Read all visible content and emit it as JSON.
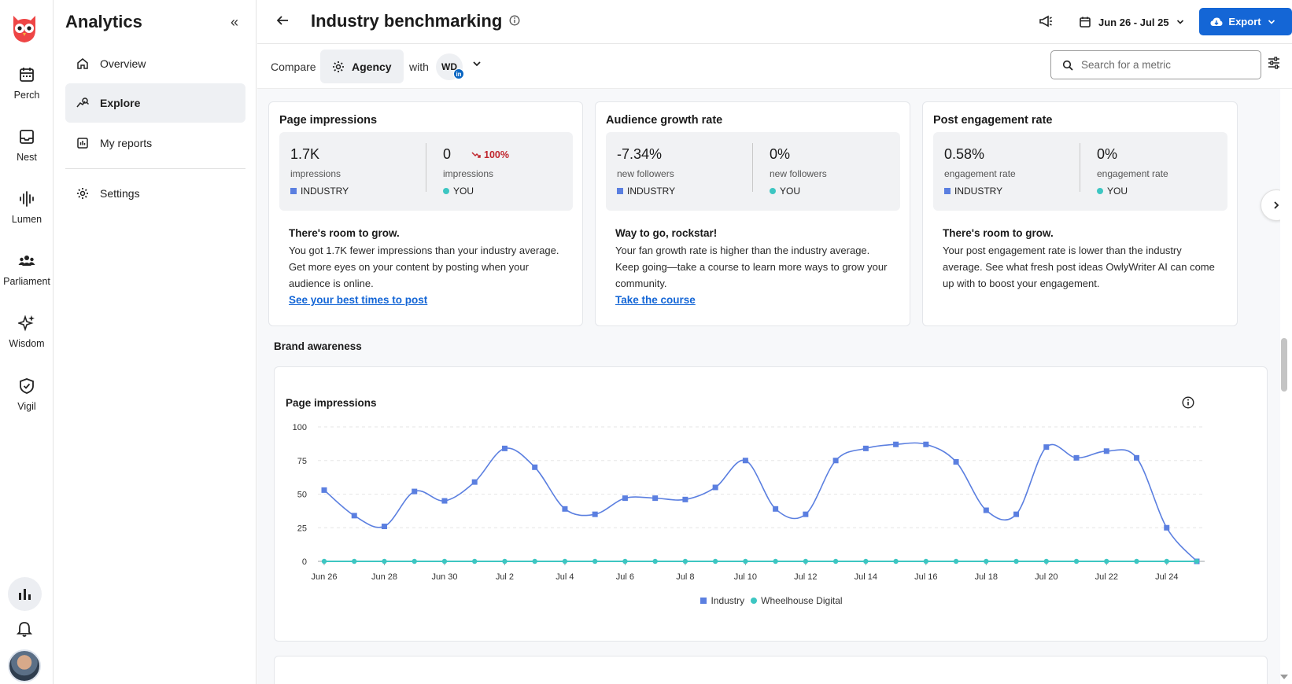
{
  "rail": {
    "items": [
      {
        "label": "Perch",
        "icon": "calendar-icon"
      },
      {
        "label": "Nest",
        "icon": "inbox-icon"
      },
      {
        "label": "Lumen",
        "icon": "waveform-icon"
      },
      {
        "label": "Parliament",
        "icon": "people-icon"
      },
      {
        "label": "Wisdom",
        "icon": "sparkle-icon"
      },
      {
        "label": "Vigil",
        "icon": "shield-icon"
      }
    ]
  },
  "subnav": {
    "title": "Analytics",
    "items": [
      {
        "label": "Overview",
        "icon": "home-icon"
      },
      {
        "label": "Explore",
        "icon": "explore-icon"
      },
      {
        "label": "My reports",
        "icon": "report-icon"
      },
      {
        "label": "Settings",
        "icon": "gear-icon"
      }
    ]
  },
  "header": {
    "title": "Industry benchmarking",
    "date_range": "Jun 26 - Jul 25",
    "export_label": "Export"
  },
  "compare": {
    "compare_label": "Compare",
    "agency_label": "Agency",
    "with_label": "with",
    "account_initials": "WD",
    "network_badge": "in",
    "search_placeholder": "Search for a metric"
  },
  "cards": [
    {
      "title": "Page impressions",
      "industry_value": "1.7K",
      "industry_unit": "impressions",
      "industry_legend": "INDUSTRY",
      "you_value": "0",
      "you_change": "100%",
      "you_unit": "impressions",
      "you_legend": "YOU",
      "headline": "There's room to grow.",
      "body": [
        "You got 1.7K fewer impressions than your industry average.",
        "Get more eyes on your content by posting when your",
        "audience is online."
      ],
      "link": "See your best times to post"
    },
    {
      "title": "Audience growth rate",
      "industry_value": "-7.34%",
      "industry_unit": "new followers",
      "industry_legend": "INDUSTRY",
      "you_value": "0%",
      "you_unit": "new followers",
      "you_legend": "YOU",
      "headline": "Way to go, rockstar!",
      "body": [
        "Your fan growth rate is higher than the industry average.",
        "Keep going—take a course to learn more ways to grow your",
        "community."
      ],
      "link": "Take the course"
    },
    {
      "title": "Post engagement rate",
      "industry_value": "0.58%",
      "industry_unit": "engagement rate",
      "industry_legend": "INDUSTRY",
      "you_value": "0%",
      "you_unit": "engagement rate",
      "you_legend": "YOU",
      "headline": "There's room to grow.",
      "body": [
        "Your post engagement rate is lower than the industry",
        "average. See what fresh post ideas OwlyWriter AI can come",
        "up with to boost your engagement."
      ]
    }
  ],
  "section": {
    "title": "Brand awareness"
  },
  "colors": {
    "industry": "#5b7fe0",
    "you": "#3dc6c2",
    "accent": "#1466d6",
    "negative": "#c0262d"
  },
  "chart_data": {
    "type": "line",
    "title": "Page impressions",
    "x": [
      "Jun 26",
      "Jun 27",
      "Jun 28",
      "Jun 29",
      "Jun 30",
      "Jul 1",
      "Jul 2",
      "Jul 3",
      "Jul 4",
      "Jul 5",
      "Jul 6",
      "Jul 7",
      "Jul 8",
      "Jul 9",
      "Jul 10",
      "Jul 11",
      "Jul 12",
      "Jul 13",
      "Jul 14",
      "Jul 15",
      "Jul 16",
      "Jul 17",
      "Jul 18",
      "Jul 19",
      "Jul 20",
      "Jul 21",
      "Jul 22",
      "Jul 23",
      "Jul 24",
      "Jul 25"
    ],
    "x_tick_labels": [
      "Jun 26",
      "Jun 28",
      "Jun 30",
      "Jul 2",
      "Jul 4",
      "Jul 6",
      "Jul 8",
      "Jul 10",
      "Jul 12",
      "Jul 14",
      "Jul 16",
      "Jul 18",
      "Jul 20",
      "Jul 22",
      "Jul 24"
    ],
    "y_ticks": [
      0,
      25,
      50,
      75,
      100
    ],
    "ylim": [
      0,
      100
    ],
    "grid": true,
    "legend": "bottom",
    "series": [
      {
        "name": "Industry",
        "color": "#5b7fe0",
        "marker": "square",
        "values": [
          53,
          34,
          26,
          52,
          45,
          59,
          84,
          70,
          39,
          35,
          47,
          47,
          46,
          55,
          75,
          39,
          35,
          75,
          84,
          87,
          87,
          74,
          38,
          35,
          85,
          77,
          82,
          77,
          25,
          0
        ]
      },
      {
        "name": "Wheelhouse Digital",
        "color": "#3dc6c2",
        "marker": "circle",
        "values": [
          0,
          0,
          0,
          0,
          0,
          0,
          0,
          0,
          0,
          0,
          0,
          0,
          0,
          0,
          0,
          0,
          0,
          0,
          0,
          0,
          0,
          0,
          0,
          0,
          0,
          0,
          0,
          0,
          0,
          0
        ]
      }
    ]
  }
}
